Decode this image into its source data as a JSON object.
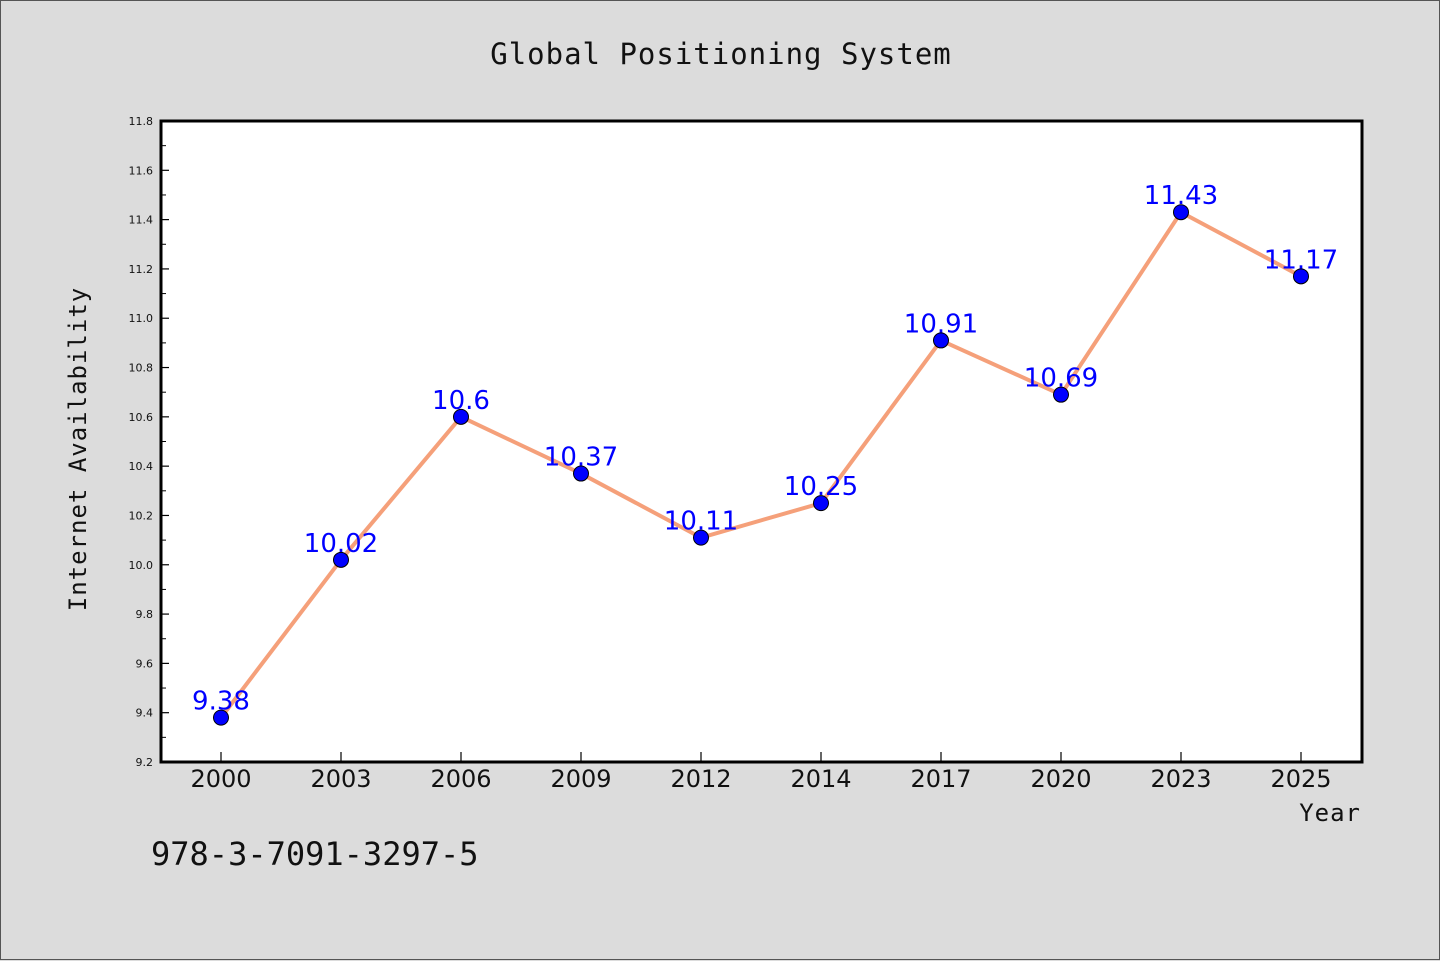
{
  "chart_data": {
    "type": "line",
    "title": "Global Positioning System",
    "xlabel": "Year",
    "ylabel": "Internet Availability",
    "categories": [
      "2000",
      "2003",
      "2006",
      "2009",
      "2012",
      "2014",
      "2017",
      "2020",
      "2023",
      "2025"
    ],
    "series": [
      {
        "values": [
          9.38,
          10.02,
          10.6,
          10.37,
          10.11,
          10.25,
          10.91,
          10.69,
          11.43,
          11.17
        ],
        "labels": [
          "9.38",
          "10.02",
          "10.6",
          "10.37",
          "10.11",
          "10.25",
          "10.91",
          "10.69",
          "11.43",
          "11.17"
        ],
        "line_color": "#f5a07a",
        "marker_color": "#0000ff"
      }
    ],
    "ylim": [
      9.2,
      11.8
    ],
    "yticks": [
      "9.2",
      "9.4",
      "9.6",
      "9.8",
      "10.0",
      "10.2",
      "10.4",
      "10.6",
      "10.8",
      "11.0",
      "11.2",
      "11.4",
      "11.6",
      "11.8"
    ],
    "grid": false,
    "legend": "none"
  },
  "footer": {
    "isbn": "978-3-7091-3297-5"
  },
  "colors": {
    "background": "#dcdcdc",
    "plot_background": "#ffffff",
    "line": "#f5a07a",
    "marker": "#0000ff",
    "data_label": "#0000ff"
  }
}
